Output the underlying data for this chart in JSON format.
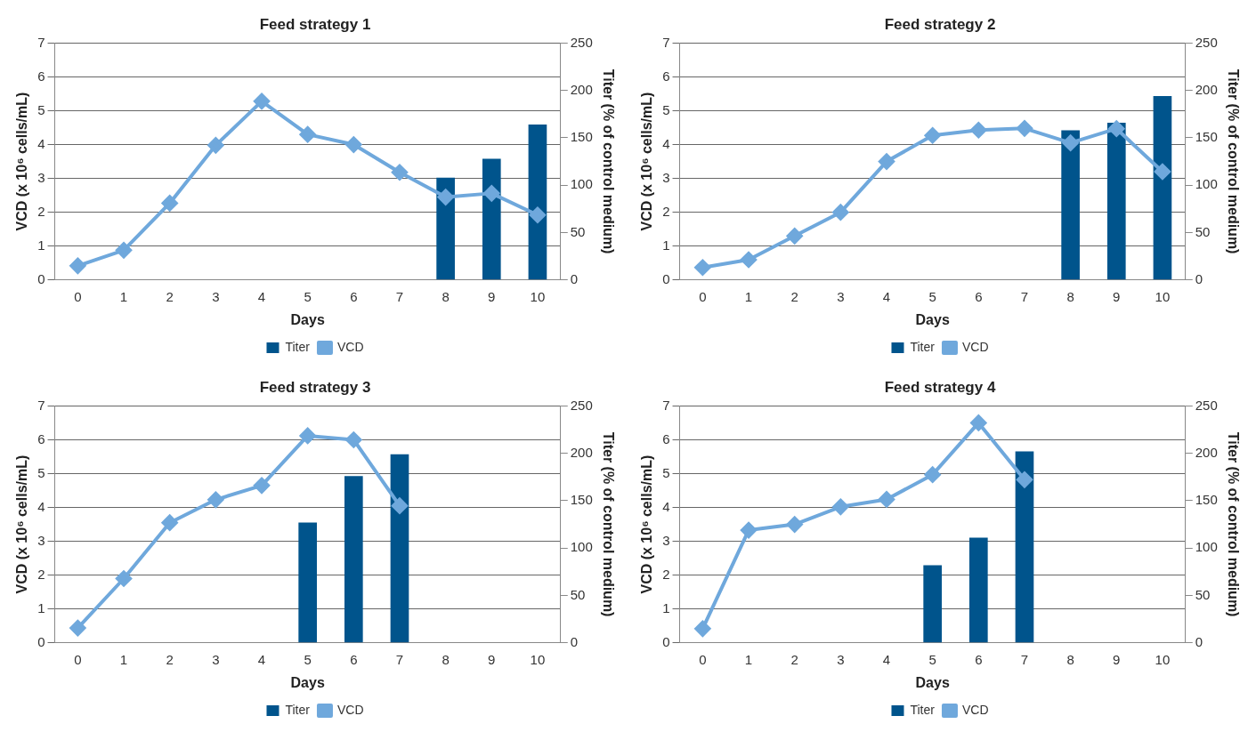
{
  "chart_data": [
    {
      "type": "bar",
      "title": "Feed strategy 1",
      "xlabel": "Days",
      "ylabel": "VCD (x 10⁶ cells/mL)",
      "y2label": "Titer (% of control medium)",
      "categories": [
        "0",
        "1",
        "2",
        "3",
        "4",
        "5",
        "6",
        "7",
        "8",
        "9",
        "10"
      ],
      "series": [
        {
          "name": "Titer",
          "axis": "y2",
          "color": "#00548c",
          "values": [
            null,
            null,
            null,
            null,
            null,
            null,
            null,
            null,
            108,
            128,
            164
          ]
        },
        {
          "name": "VCD",
          "type": "line",
          "color": "#6fa8dc",
          "values": [
            0.42,
            0.88,
            2.27,
            3.98,
            5.28,
            4.3,
            4.0,
            3.18,
            2.45,
            2.56,
            1.92
          ]
        }
      ],
      "ylim": [
        0,
        7
      ],
      "yticks": [
        0,
        1,
        2,
        3,
        4,
        5,
        6,
        7
      ],
      "y2lim": [
        0,
        250
      ],
      "y2ticks": [
        0,
        50,
        100,
        150,
        200,
        250
      ],
      "grid": "y",
      "legend": "bottom",
      "marker": "diamond"
    },
    {
      "type": "bar",
      "title": "Feed strategy 2",
      "xlabel": "Days",
      "ylabel": "VCD (x 10⁶ cells/mL)",
      "y2label": "Titer (% of control medium)",
      "categories": [
        "0",
        "1",
        "2",
        "3",
        "4",
        "5",
        "6",
        "7",
        "8",
        "9",
        "10"
      ],
      "series": [
        {
          "name": "Titer",
          "axis": "y2",
          "color": "#00548c",
          "values": [
            null,
            null,
            null,
            null,
            null,
            null,
            null,
            null,
            158,
            166,
            194
          ]
        },
        {
          "name": "VCD",
          "type": "line",
          "color": "#6fa8dc",
          "values": [
            0.37,
            0.6,
            1.3,
            2.0,
            3.5,
            4.27,
            4.43,
            4.48,
            4.05,
            4.47,
            3.2
          ]
        }
      ],
      "ylim": [
        0,
        7
      ],
      "yticks": [
        0,
        1,
        2,
        3,
        4,
        5,
        6,
        7
      ],
      "y2lim": [
        0,
        250
      ],
      "y2ticks": [
        0,
        50,
        100,
        150,
        200,
        250
      ],
      "grid": "y",
      "legend": "bottom",
      "marker": "diamond"
    },
    {
      "type": "bar",
      "title": "Feed strategy 3",
      "xlabel": "Days",
      "ylabel": "VCD (x 10⁶ cells/mL)",
      "y2label": "Titer (% of control medium)",
      "categories": [
        "0",
        "1",
        "2",
        "3",
        "4",
        "5",
        "6",
        "7",
        "8",
        "9",
        "10"
      ],
      "series": [
        {
          "name": "Titer",
          "axis": "y2",
          "color": "#00548c",
          "values": [
            null,
            null,
            null,
            null,
            null,
            127,
            176,
            199,
            null,
            null,
            null
          ]
        },
        {
          "name": "VCD",
          "type": "line",
          "color": "#6fa8dc",
          "values": [
            0.44,
            1.9,
            3.55,
            4.23,
            4.65,
            6.12,
            6.0,
            4.05,
            null,
            null,
            null
          ]
        }
      ],
      "ylim": [
        0,
        7
      ],
      "yticks": [
        0,
        1,
        2,
        3,
        4,
        5,
        6,
        7
      ],
      "y2lim": [
        0,
        250
      ],
      "y2ticks": [
        0,
        50,
        100,
        150,
        200,
        250
      ],
      "grid": "y",
      "legend": "bottom",
      "marker": "diamond"
    },
    {
      "type": "bar",
      "title": "Feed strategy 4",
      "xlabel": "Days",
      "ylabel": "VCD (x 10⁶ cells/mL)",
      "y2label": "Titer (% of control medium)",
      "categories": [
        "0",
        "1",
        "2",
        "3",
        "4",
        "5",
        "6",
        "7",
        "8",
        "9",
        "10"
      ],
      "series": [
        {
          "name": "Titer",
          "axis": "y2",
          "color": "#00548c",
          "values": [
            null,
            null,
            null,
            null,
            null,
            82,
            111,
            202,
            null,
            null,
            null
          ]
        },
        {
          "name": "VCD",
          "type": "line",
          "color": "#6fa8dc",
          "values": [
            0.42,
            3.33,
            3.5,
            4.02,
            4.24,
            4.97,
            6.5,
            4.82,
            null,
            null,
            null
          ]
        }
      ],
      "ylim": [
        0,
        7
      ],
      "yticks": [
        0,
        1,
        2,
        3,
        4,
        5,
        6,
        7
      ],
      "y2lim": [
        0,
        250
      ],
      "y2ticks": [
        0,
        50,
        100,
        150,
        200,
        250
      ],
      "grid": "y",
      "legend": "bottom",
      "marker": "diamond"
    }
  ]
}
